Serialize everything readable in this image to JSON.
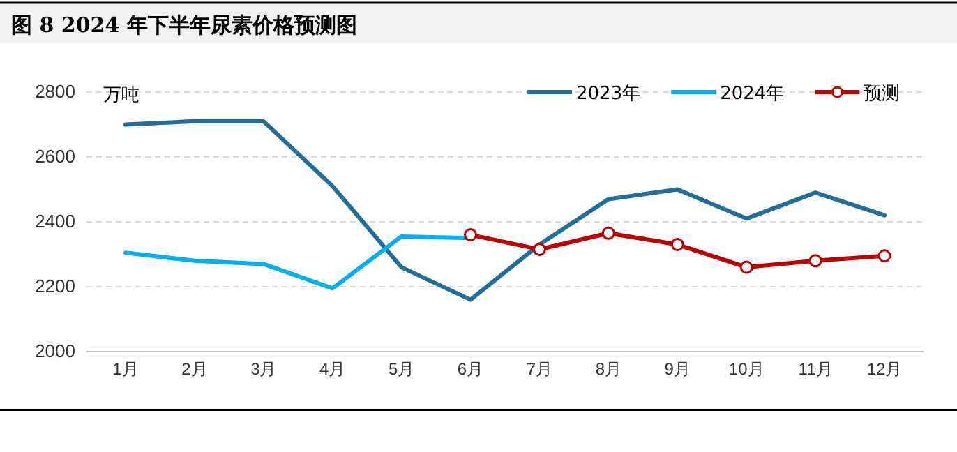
{
  "chart_data": {
    "type": "line",
    "title": "图 8 2024 年下半年尿素价格预测图",
    "ylabel": "万吨",
    "categories": [
      "1月",
      "2月",
      "3月",
      "4月",
      "5月",
      "6月",
      "7月",
      "8月",
      "9月",
      "10月",
      "11月",
      "12月"
    ],
    "series": [
      {
        "name": "2023年",
        "color": "#1f6e9c",
        "values": [
          2700,
          2710,
          2710,
          2510,
          2260,
          2160,
          2330,
          2470,
          2500,
          2410,
          2490,
          2420
        ]
      },
      {
        "name": "2024年",
        "color": "#00b0f0",
        "values": [
          2305,
          2280,
          2270,
          2195,
          2355,
          2350,
          null,
          null,
          null,
          null,
          null,
          null
        ]
      },
      {
        "name": "预测",
        "color": "#c00000",
        "marker": "circle",
        "values": [
          null,
          null,
          null,
          null,
          null,
          2360,
          2315,
          2365,
          2330,
          2260,
          2280,
          2295
        ]
      }
    ],
    "ylim": [
      2000,
      2800
    ],
    "yticks": [
      2000,
      2200,
      2400,
      2600,
      2800
    ],
    "grid": "y",
    "legend": "top right"
  }
}
